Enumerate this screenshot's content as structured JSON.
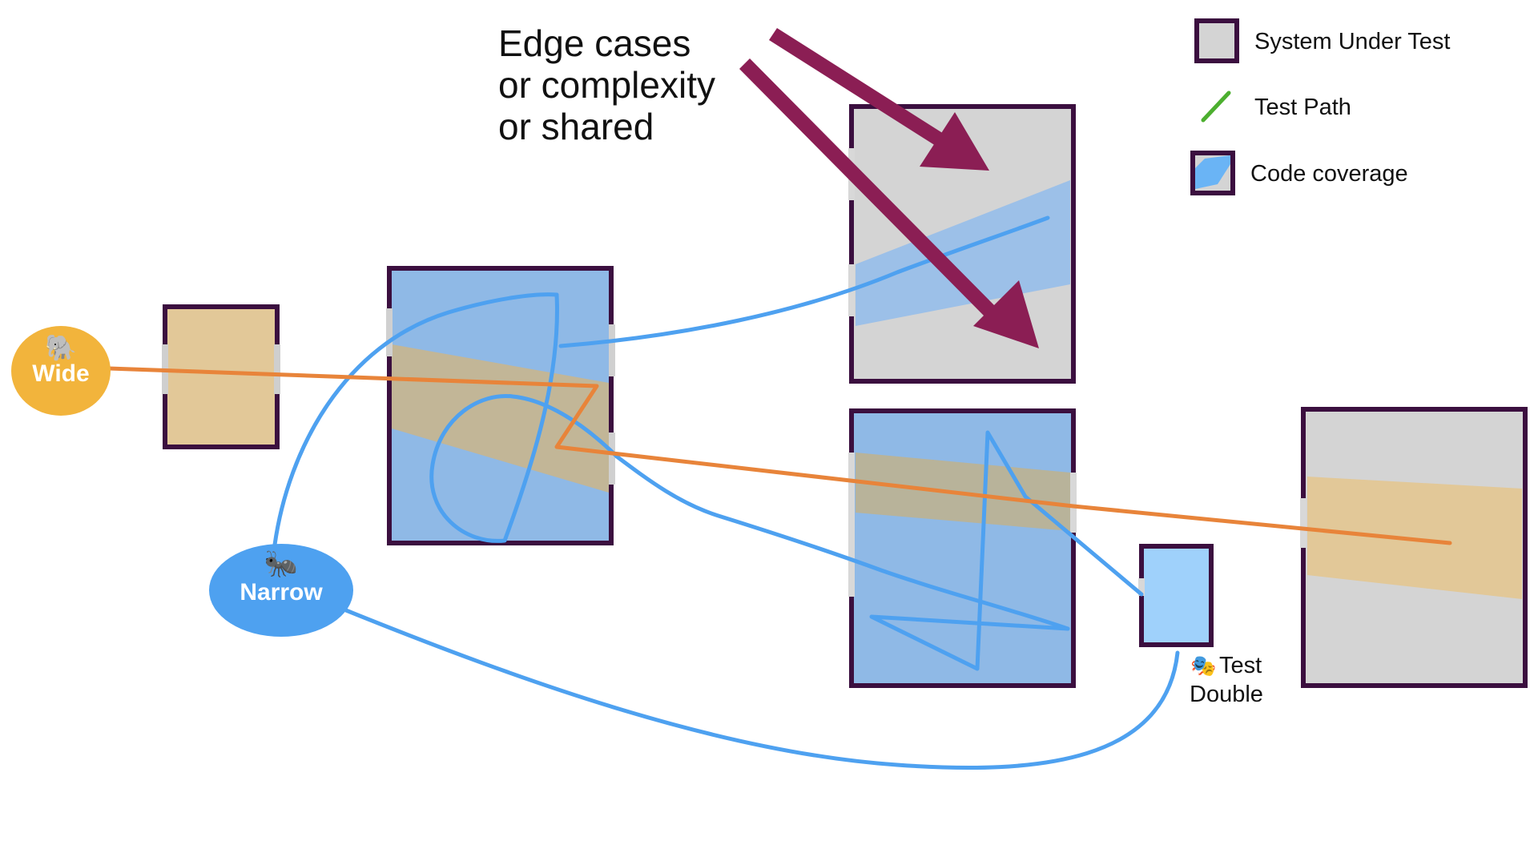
{
  "annotation": {
    "lines": [
      "Edge cases",
      "or complexity",
      "or shared"
    ]
  },
  "legend": {
    "items": [
      {
        "label": "System Under Test",
        "icon": "system-box-icon"
      },
      {
        "label": "Test Path",
        "icon": "green-line-icon"
      },
      {
        "label": "Code coverage",
        "icon": "coverage-box-icon"
      }
    ]
  },
  "badges": {
    "wide": {
      "label": "Wide",
      "emoji": "🐘"
    },
    "narrow": {
      "label": "Narrow",
      "emoji": "🐜"
    }
  },
  "test_double": {
    "emoji": "🎭",
    "line1": "Test",
    "line2": "Double"
  },
  "colors": {
    "box_border": "#3b0f3f",
    "system_fill": "#d4d4d4",
    "coverage_blue": "#8fb9e6",
    "coverage_wide": "#d9c08b",
    "narrow_path": "#4ea1f0",
    "wide_path": "#e8843a",
    "wide_badge": "#f2b43c",
    "narrow_badge": "#4ea1f0",
    "arrow": "#8b1e54",
    "legend_line": "#4caf2f",
    "double_fill": "#9fd1fb"
  }
}
